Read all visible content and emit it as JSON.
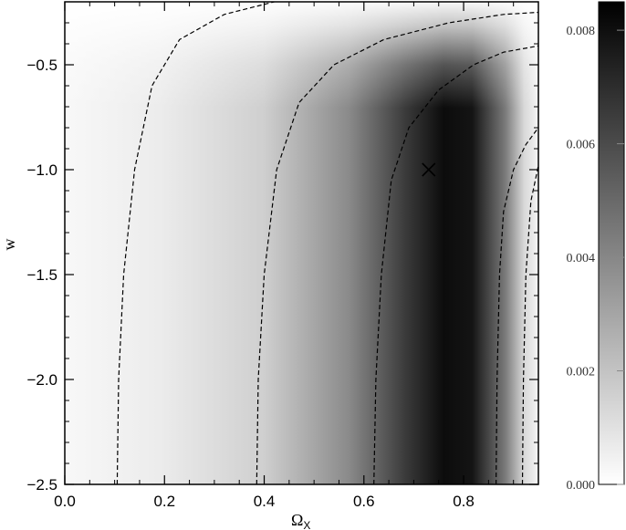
{
  "chart_data": {
    "type": "heatmap",
    "title": "",
    "xlabel": "Ω",
    "xlabel_subscript": "X",
    "ylabel": "w",
    "xlim": [
      0.0,
      0.95
    ],
    "ylim": [
      -2.5,
      -0.2
    ],
    "x_ticks": [
      {
        "value": 0.0,
        "label": "0.0"
      },
      {
        "value": 0.2,
        "label": "0.2"
      },
      {
        "value": 0.4,
        "label": "0.4"
      },
      {
        "value": 0.6,
        "label": "0.6"
      },
      {
        "value": 0.8,
        "label": "0.8"
      }
    ],
    "y_ticks": [
      {
        "value": -0.5,
        "label": "−0.5"
      },
      {
        "value": -1.0,
        "label": "−1.0"
      },
      {
        "value": -1.5,
        "label": "−1.5"
      },
      {
        "value": -2.0,
        "label": "−2.0"
      },
      {
        "value": -2.5,
        "label": "−2.5"
      }
    ],
    "colorbar": {
      "range": [
        0.0,
        0.0085
      ],
      "colormap": "grayscale (white = 0, black = max)",
      "ticks": [
        {
          "value": 0.0,
          "label": "0.000"
        },
        {
          "value": 0.002,
          "label": "0.002"
        },
        {
          "value": 0.004,
          "label": "0.004"
        },
        {
          "value": 0.006,
          "label": "0.006"
        },
        {
          "value": 0.008,
          "label": "0.008"
        }
      ]
    },
    "marker": {
      "symbol": "×",
      "x": 0.73,
      "y": -1.0
    },
    "contours": [
      {
        "line": "dashed",
        "points": [
          [
            0.105,
            -2.5
          ],
          [
            0.108,
            -2.0
          ],
          [
            0.118,
            -1.5
          ],
          [
            0.14,
            -1.0
          ],
          [
            0.175,
            -0.6
          ],
          [
            0.23,
            -0.38
          ],
          [
            0.32,
            -0.26
          ],
          [
            0.42,
            -0.2
          ]
        ]
      },
      {
        "line": "dashed",
        "points": [
          [
            0.385,
            -2.5
          ],
          [
            0.388,
            -2.0
          ],
          [
            0.4,
            -1.5
          ],
          [
            0.425,
            -1.0
          ],
          [
            0.47,
            -0.68
          ],
          [
            0.54,
            -0.5
          ],
          [
            0.64,
            -0.38
          ],
          [
            0.77,
            -0.3
          ],
          [
            0.88,
            -0.26
          ],
          [
            0.95,
            -0.25
          ]
        ]
      },
      {
        "line": "dashed",
        "points": [
          [
            0.62,
            -2.5
          ],
          [
            0.624,
            -2.0
          ],
          [
            0.635,
            -1.5
          ],
          [
            0.655,
            -1.05
          ],
          [
            0.69,
            -0.8
          ],
          [
            0.75,
            -0.62
          ],
          [
            0.82,
            -0.5
          ],
          [
            0.88,
            -0.44
          ],
          [
            0.95,
            -0.41
          ]
        ]
      },
      {
        "line": "dashed",
        "points": [
          [
            0.865,
            -2.5
          ],
          [
            0.867,
            -2.0
          ],
          [
            0.872,
            -1.5
          ],
          [
            0.88,
            -1.2
          ],
          [
            0.9,
            -1.0
          ],
          [
            0.925,
            -0.88
          ],
          [
            0.95,
            -0.8
          ]
        ]
      },
      {
        "line": "dashed",
        "points": [
          [
            0.918,
            -2.5
          ],
          [
            0.92,
            -2.0
          ],
          [
            0.925,
            -1.5
          ],
          [
            0.935,
            -1.15
          ],
          [
            0.95,
            -0.98
          ]
        ]
      }
    ]
  }
}
